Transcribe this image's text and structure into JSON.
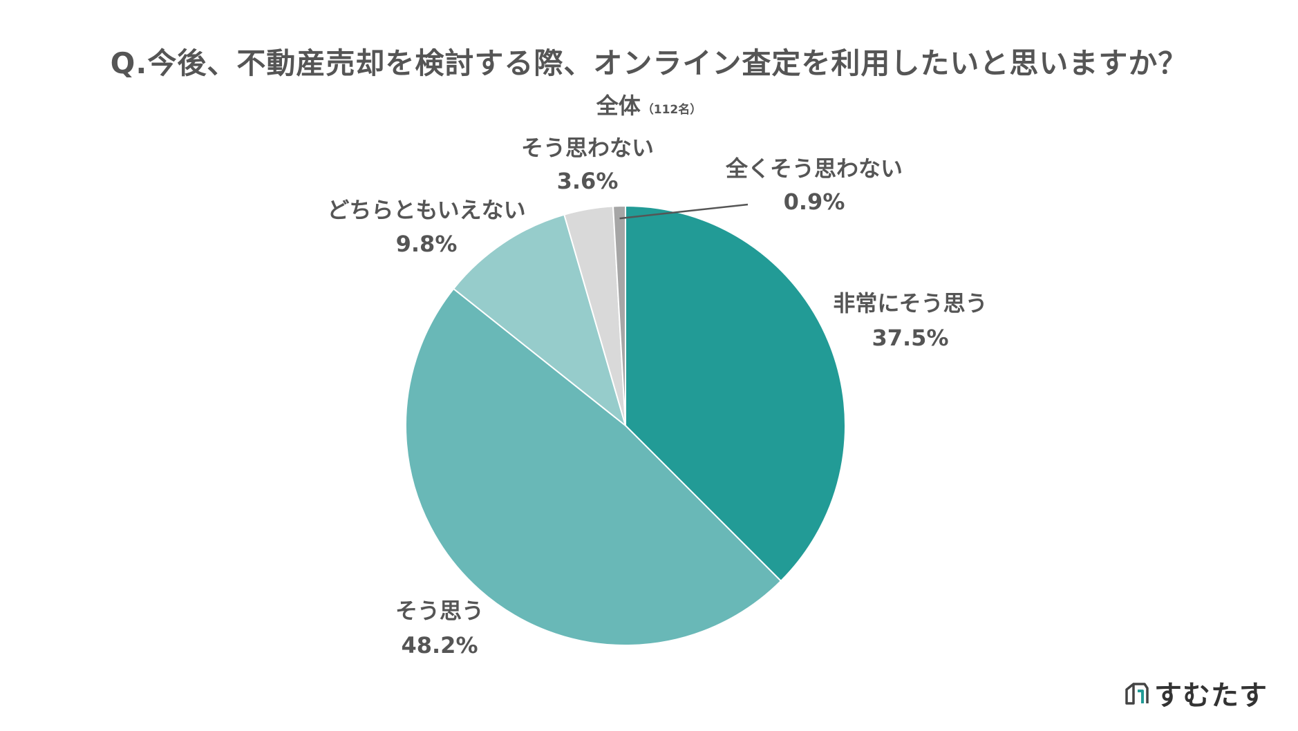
{
  "chart_data": {
    "type": "pie",
    "title": "Q.今後、不動産売却を検討する際、オンライン査定を利用したいと思いますか？",
    "subtitle": "全体",
    "subtitle_note": "（112名）",
    "start_angle_deg": 0,
    "direction": "clockwise",
    "slices": [
      {
        "label": "非常にそう思う",
        "value": 37.5,
        "value_label": "37.5%",
        "color": "#229b96"
      },
      {
        "label": "そう思う",
        "value": 48.2,
        "value_label": "48.2%",
        "color": "#69b8b7"
      },
      {
        "label": "どちらともいえない",
        "value": 9.8,
        "value_label": "9.8%",
        "color": "#96cccb"
      },
      {
        "label": "そう思わない",
        "value": 3.6,
        "value_label": "3.6%",
        "color": "#d9d9d9"
      },
      {
        "label": "全くそう思わない",
        "value": 0.9,
        "value_label": "0.9%",
        "color": "#a6a6a6"
      }
    ],
    "legend": "none"
  },
  "brand": {
    "name": "すむたす",
    "icon": "house-logo-icon",
    "icon_colors": [
      "#444444",
      "#229b96"
    ]
  }
}
